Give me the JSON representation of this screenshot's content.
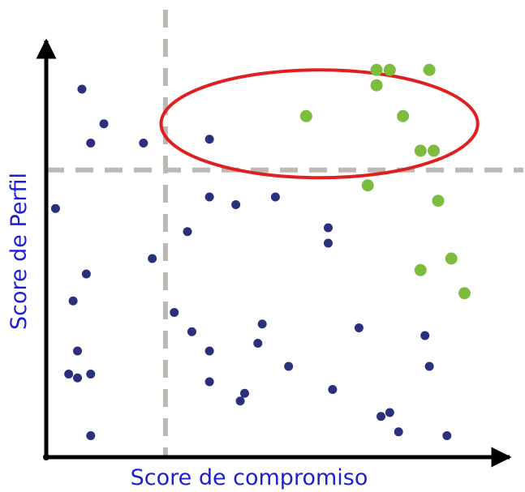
{
  "chart_data": {
    "type": "scatter",
    "title": "",
    "xlabel": "Score de compromiso",
    "ylabel": "Score de Perfil",
    "xlim": [
      0,
      100
    ],
    "ylim": [
      0,
      100
    ],
    "grid": false,
    "colors": {
      "axis": "#000000",
      "label": "#1f1fd0",
      "divider": "#bdb8b3",
      "highlight_ellipse": "#e02020"
    },
    "dividers": {
      "x": 26,
      "y": 71
    },
    "highlight_region": {
      "shape": "ellipse",
      "cx": 61,
      "cy": 83,
      "rx": 36,
      "ry": 14
    },
    "series": [
      {
        "color": "#2a2f7e",
        "points": [
          [
            7,
            92
          ],
          [
            12,
            83
          ],
          [
            9,
            78
          ],
          [
            21,
            78
          ],
          [
            1,
            61
          ],
          [
            23,
            48
          ],
          [
            8,
            44
          ],
          [
            5,
            37
          ],
          [
            6,
            24
          ],
          [
            4,
            18
          ],
          [
            6,
            17
          ],
          [
            9,
            18
          ],
          [
            9,
            2
          ],
          [
            36,
            79
          ],
          [
            36,
            64
          ],
          [
            42,
            62
          ],
          [
            31,
            55
          ],
          [
            28,
            34
          ],
          [
            32,
            29
          ],
          [
            36,
            24
          ],
          [
            48,
            31
          ],
          [
            47,
            26
          ],
          [
            36,
            16
          ],
          [
            44,
            13
          ],
          [
            43,
            11
          ],
          [
            54,
            20
          ],
          [
            51,
            64
          ],
          [
            63,
            56
          ],
          [
            63,
            52
          ],
          [
            70,
            30
          ],
          [
            64,
            14
          ],
          [
            77,
            8
          ],
          [
            75,
            7
          ],
          [
            79,
            3
          ],
          [
            85,
            28
          ],
          [
            86,
            20
          ],
          [
            90,
            2
          ]
        ]
      },
      {
        "color": "#7ebc3e",
        "points": [
          [
            74,
            97
          ],
          [
            77,
            97
          ],
          [
            86,
            97
          ],
          [
            74,
            93
          ],
          [
            58,
            85
          ],
          [
            80,
            85
          ],
          [
            84,
            76
          ],
          [
            87,
            76
          ],
          [
            72,
            67
          ],
          [
            88,
            63
          ],
          [
            91,
            48
          ],
          [
            84,
            45
          ],
          [
            94,
            39
          ]
        ]
      }
    ]
  }
}
